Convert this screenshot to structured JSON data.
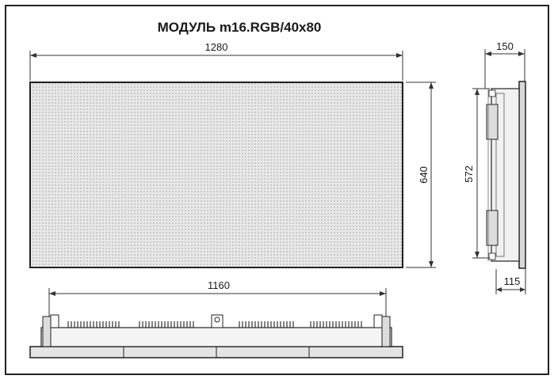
{
  "drawing": {
    "title": "МОДУЛЬ m16.RGB/40x80",
    "dimensions": {
      "front_width": "1280",
      "front_height": "640",
      "side_depth": "150",
      "side_inner_height": "572",
      "side_base_depth": "115",
      "bottom_mount_width": "1160"
    },
    "colors": {
      "frame": "#222222",
      "panel_fill": "#e6e6e6",
      "led_dots": "#9a9a9a",
      "background": "#ffffff"
    }
  }
}
